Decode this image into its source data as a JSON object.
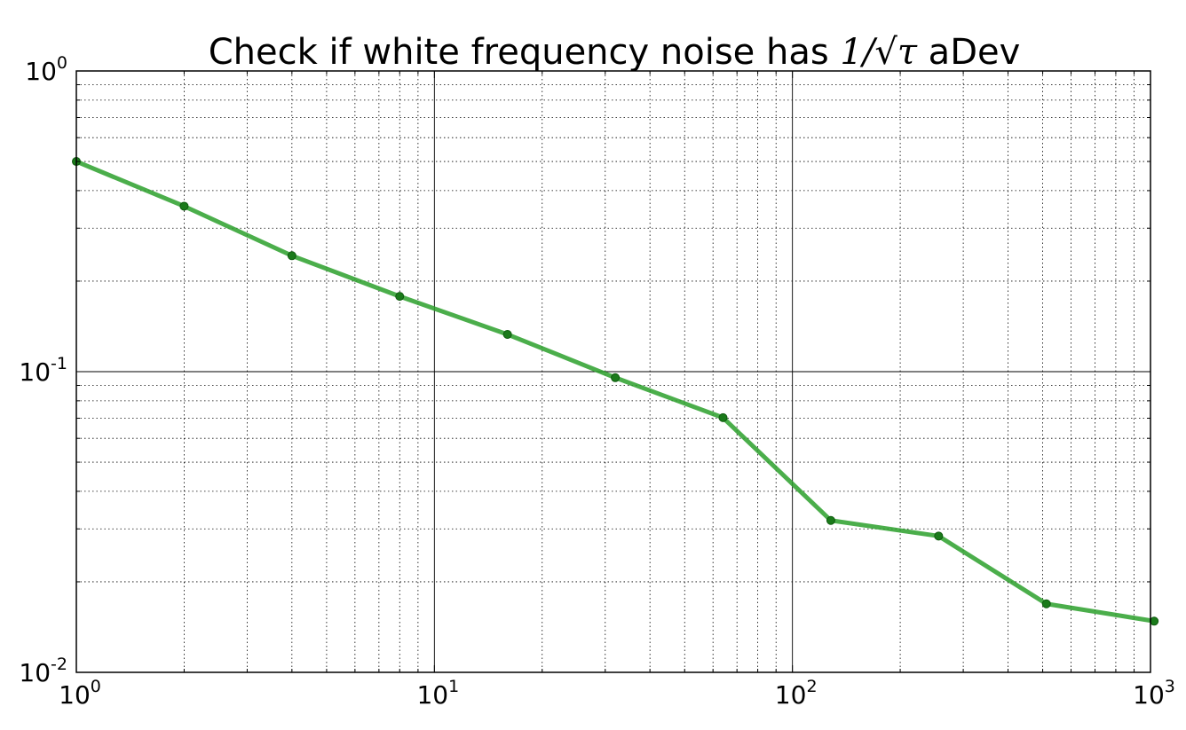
{
  "title": {
    "prefix": "Check if white frequency noise has ",
    "math": "1/√τ",
    "suffix": " aDev"
  },
  "chart_data": {
    "type": "line",
    "title": "Check if white frequency noise has 1/√τ aDev",
    "xlabel": "",
    "ylabel": "",
    "xscale": "log",
    "yscale": "log",
    "xlim": [
      1,
      1000
    ],
    "ylim": [
      0.01,
      1
    ],
    "grid": {
      "major": true,
      "minor": true,
      "major_style": "solid",
      "minor_style": "dotted"
    },
    "x_ticks": [
      {
        "value": 1,
        "base": "10",
        "exp": "0"
      },
      {
        "value": 10,
        "base": "10",
        "exp": "1"
      },
      {
        "value": 100,
        "base": "10",
        "exp": "2"
      },
      {
        "value": 1000,
        "base": "10",
        "exp": "3"
      }
    ],
    "y_ticks": [
      {
        "value": 0.01,
        "base": "10",
        "exp": "-2"
      },
      {
        "value": 0.1,
        "base": "10",
        "exp": "-1"
      },
      {
        "value": 1,
        "base": "10",
        "exp": "0"
      }
    ],
    "series": [
      {
        "color": "#2ca02c",
        "marker_color": "#1a7a1a",
        "points": [
          {
            "x": 1,
            "y": 0.5
          },
          {
            "x": 2,
            "y": 0.355
          },
          {
            "x": 4,
            "y": 0.243
          },
          {
            "x": 8,
            "y": 0.178
          },
          {
            "x": 16,
            "y": 0.133
          },
          {
            "x": 32,
            "y": 0.0955
          },
          {
            "x": 64,
            "y": 0.0703
          },
          {
            "x": 128,
            "y": 0.032
          },
          {
            "x": 256,
            "y": 0.0284
          },
          {
            "x": 512,
            "y": 0.0169
          },
          {
            "x": 1024,
            "y": 0.0148
          }
        ]
      }
    ]
  }
}
